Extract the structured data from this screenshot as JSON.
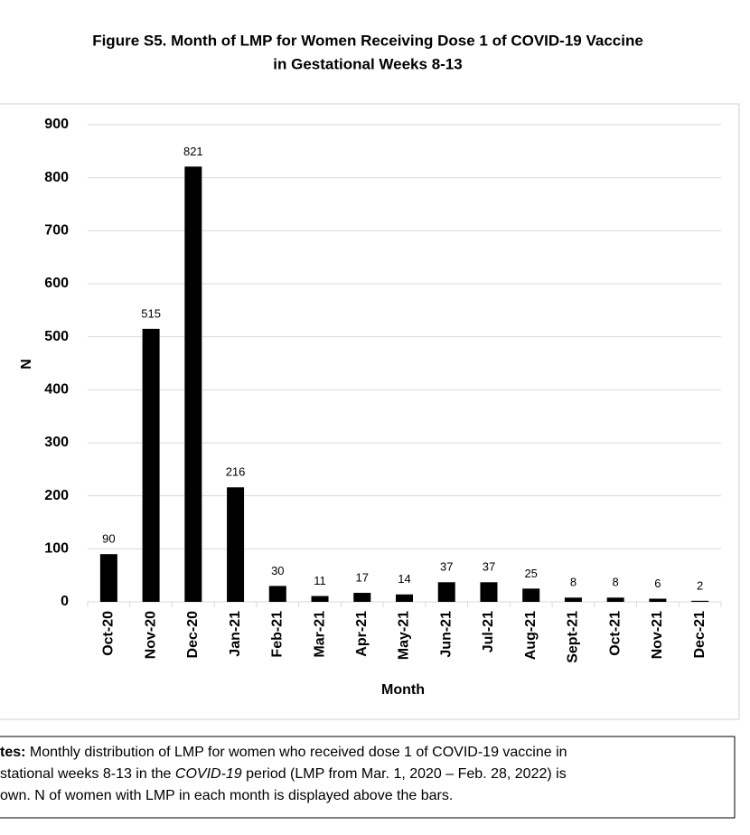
{
  "chart_data": {
    "type": "bar",
    "title": [
      "Figure S5. Month of LMP for Women Receiving Dose 1 of COVID-19 Vaccine",
      "in Gestational Weeks 8-13"
    ],
    "x_label": "Month",
    "y_label": "N",
    "categories": [
      "Oct-20",
      "Nov-20",
      "Dec-20",
      "Jan-21",
      "Feb-21",
      "Mar-21",
      "Apr-21",
      "May-21",
      "Jun-21",
      "Jul-21",
      "Aug-21",
      "Sept-21",
      "Oct-21",
      "Nov-21",
      "Dec-21"
    ],
    "values": [
      90,
      515,
      821,
      216,
      30,
      11,
      17,
      14,
      37,
      37,
      25,
      8,
      8,
      6,
      2
    ],
    "color": "#000000",
    "ylim": [
      0,
      900
    ],
    "yticks": [
      0,
      100,
      200,
      300,
      400,
      500,
      600,
      700,
      800,
      900
    ],
    "grid": true
  },
  "notes": {
    "label": "tes:",
    "lines": [
      [
        " Monthly distribution of LMP for women who received dose 1 of COVID-19 vaccine in"
      ],
      [
        "stational weeks 8-13 in the ",
        "COVID-19",
        " period (LMP from Mar. 1, 2020 – Feb. 28, 2022) is"
      ],
      [
        "own. N of women with LMP in each month is displayed above the bars."
      ]
    ]
  }
}
